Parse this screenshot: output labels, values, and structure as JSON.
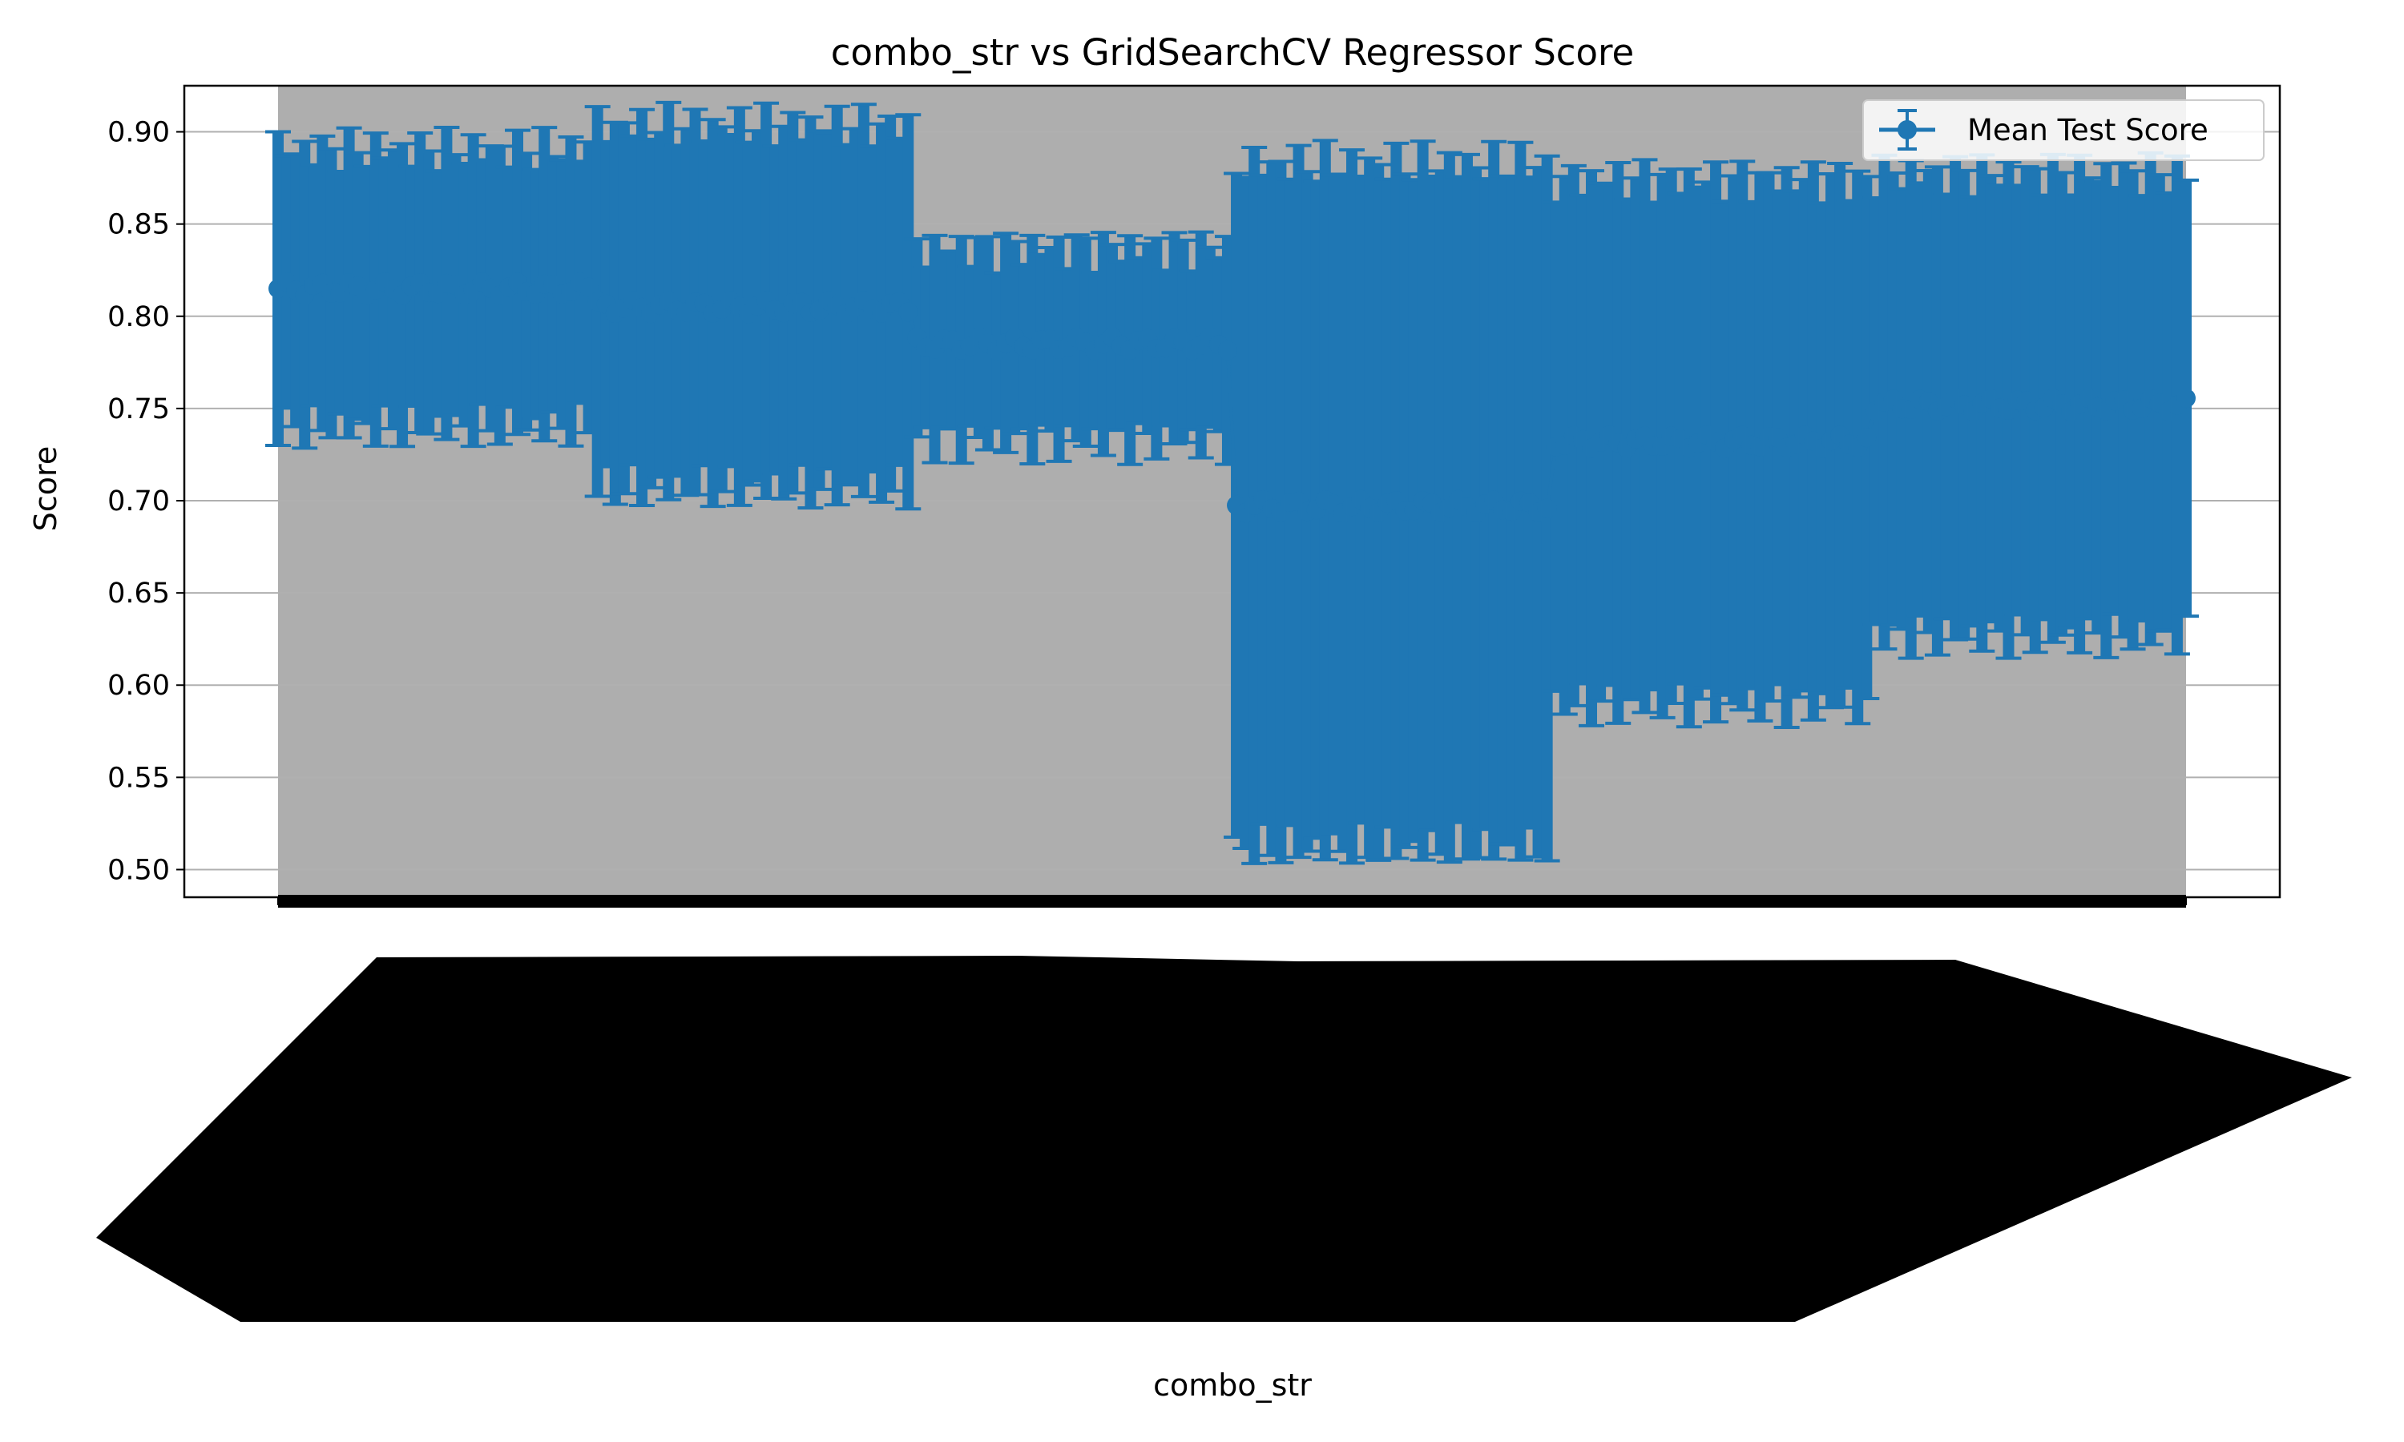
{
  "chart_data": {
    "type": "line",
    "title": "combo_str vs GridSearchCV Regressor Score",
    "xlabel": "combo_str",
    "ylabel": "Score",
    "ylim": [
      0.485,
      0.925
    ],
    "yticks": [
      0.5,
      0.55,
      0.6,
      0.65,
      0.7,
      0.75,
      0.8,
      0.85,
      0.9
    ],
    "ytick_labels": [
      "0.50",
      "0.55",
      "0.60",
      "0.65",
      "0.70",
      "0.75",
      "0.80",
      "0.85",
      "0.90"
    ],
    "grid": {
      "y": true,
      "x": false
    },
    "legend": {
      "position": "top-right",
      "entries": [
        "Mean Test Score"
      ]
    },
    "colors": {
      "series": "#1f77b4",
      "errorbar_band": "#aeaeae",
      "grid": "#b0b0b0"
    },
    "x_tick_labels_note": "",
    "series": [
      {
        "name": "Mean Test Score",
        "marker": "circle",
        "groups": [
          {
            "count": 36,
            "mean": 0.815,
            "std": 0.075
          },
          {
            "count": 36,
            "mean": 0.805,
            "std": 0.098
          },
          {
            "count": 36,
            "mean": 0.785,
            "std": 0.052
          },
          {
            "count": 36,
            "mean": 0.697,
            "std": 0.185
          },
          {
            "count": 36,
            "mean": 0.732,
            "std": 0.142
          },
          {
            "count": 36,
            "mean": 0.752,
            "std": 0.125
          }
        ]
      }
    ]
  }
}
